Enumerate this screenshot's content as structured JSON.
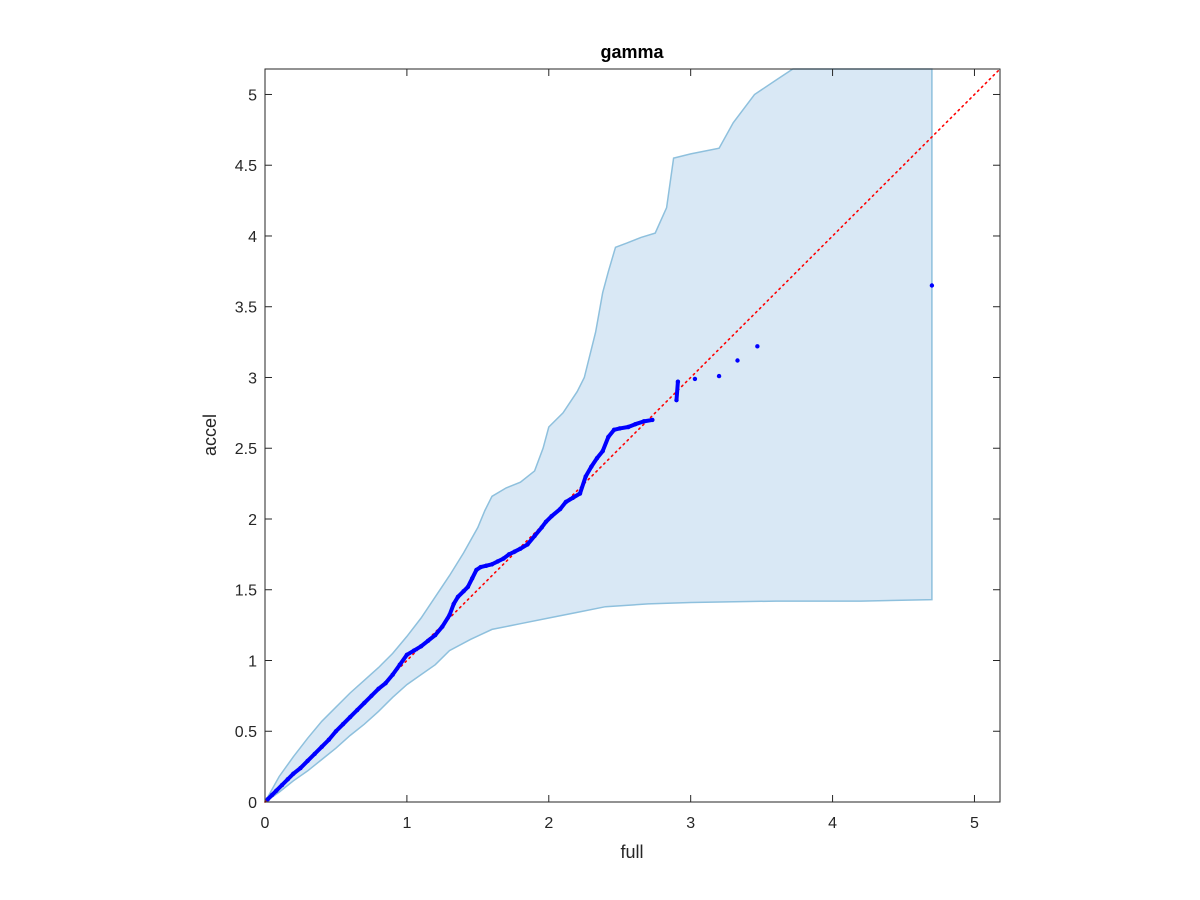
{
  "chart_data": {
    "type": "scatter",
    "title": "gamma",
    "xlabel": "full",
    "ylabel": "accel",
    "xlim": [
      0,
      5.18
    ],
    "ylim": [
      0,
      5.18
    ],
    "xticks": [
      "0",
      "1",
      "2",
      "3",
      "4",
      "5"
    ],
    "yticks": [
      "0",
      "0.5",
      "1",
      "1.5",
      "2",
      "2.5",
      "3",
      "3.5",
      "4",
      "4.5",
      "5"
    ],
    "xtick_values": [
      0,
      1,
      2,
      3,
      4,
      5
    ],
    "ytick_values": [
      0,
      0.5,
      1,
      1.5,
      2,
      2.5,
      3,
      3.5,
      4,
      4.5,
      5
    ],
    "grid": false,
    "reference_line": {
      "x": [
        0,
        5.18
      ],
      "y": [
        0,
        5.18
      ],
      "style": "dotted",
      "color": "#ff0000"
    },
    "band": {
      "color": "#d9e8f5",
      "edge_color": "#8ec0dd",
      "upper": [
        [
          0,
          0
        ],
        [
          0.1,
          0.18
        ],
        [
          0.2,
          0.32
        ],
        [
          0.3,
          0.45
        ],
        [
          0.4,
          0.57
        ],
        [
          0.5,
          0.67
        ],
        [
          0.6,
          0.77
        ],
        [
          0.7,
          0.86
        ],
        [
          0.8,
          0.95
        ],
        [
          0.9,
          1.05
        ],
        [
          1.0,
          1.17
        ],
        [
          1.1,
          1.3
        ],
        [
          1.2,
          1.45
        ],
        [
          1.3,
          1.6
        ],
        [
          1.4,
          1.76
        ],
        [
          1.5,
          1.94
        ],
        [
          1.55,
          2.06
        ],
        [
          1.6,
          2.16
        ],
        [
          1.7,
          2.22
        ],
        [
          1.8,
          2.26
        ],
        [
          1.9,
          2.34
        ],
        [
          1.96,
          2.5
        ],
        [
          2.0,
          2.65
        ],
        [
          2.1,
          2.75
        ],
        [
          2.2,
          2.9
        ],
        [
          2.25,
          3.0
        ],
        [
          2.33,
          3.32
        ],
        [
          2.38,
          3.6
        ],
        [
          2.42,
          3.75
        ],
        [
          2.47,
          3.92
        ],
        [
          2.55,
          3.95
        ],
        [
          2.65,
          3.99
        ],
        [
          2.75,
          4.02
        ],
        [
          2.83,
          4.2
        ],
        [
          2.88,
          4.55
        ],
        [
          3.0,
          4.58
        ],
        [
          3.2,
          4.62
        ],
        [
          3.3,
          4.8
        ],
        [
          3.45,
          5.0
        ],
        [
          3.6,
          5.1
        ],
        [
          3.72,
          5.18
        ],
        [
          4.7,
          5.18
        ]
      ],
      "lower": [
        [
          4.7,
          1.43
        ],
        [
          4.2,
          1.42
        ],
        [
          3.6,
          1.42
        ],
        [
          3.0,
          1.41
        ],
        [
          2.7,
          1.4
        ],
        [
          2.4,
          1.38
        ],
        [
          2.2,
          1.34
        ],
        [
          2.0,
          1.3
        ],
        [
          1.8,
          1.26
        ],
        [
          1.6,
          1.22
        ],
        [
          1.45,
          1.15
        ],
        [
          1.3,
          1.07
        ],
        [
          1.2,
          0.97
        ],
        [
          1.1,
          0.9
        ],
        [
          1.0,
          0.83
        ],
        [
          0.9,
          0.74
        ],
        [
          0.8,
          0.64
        ],
        [
          0.7,
          0.55
        ],
        [
          0.6,
          0.47
        ],
        [
          0.5,
          0.38
        ],
        [
          0.4,
          0.3
        ],
        [
          0.3,
          0.22
        ],
        [
          0.2,
          0.15
        ],
        [
          0.1,
          0.07
        ],
        [
          0,
          0
        ]
      ]
    },
    "series": [
      {
        "color": "#0000ff",
        "x": [
          0.02,
          0.05,
          0.08,
          0.12,
          0.16,
          0.2,
          0.25,
          0.3,
          0.35,
          0.4,
          0.45,
          0.5,
          0.55,
          0.6,
          0.65,
          0.7,
          0.75,
          0.8,
          0.85,
          0.9,
          0.95,
          1.0,
          1.05,
          1.1,
          1.15,
          1.2,
          1.25,
          1.3,
          1.33,
          1.36,
          1.4,
          1.43,
          1.46,
          1.49,
          1.52,
          1.56,
          1.6,
          1.64,
          1.68,
          1.72,
          1.76,
          1.8,
          1.85,
          1.9,
          1.95,
          1.98,
          2.02,
          2.08,
          2.12,
          2.17,
          2.22,
          2.26,
          2.3,
          2.34,
          2.38,
          2.42,
          2.46,
          2.5,
          2.56,
          2.61,
          2.67,
          2.73,
          2.9,
          2.91,
          3.03,
          3.2,
          3.33,
          3.47,
          4.7
        ],
        "y": [
          0.02,
          0.05,
          0.08,
          0.12,
          0.16,
          0.2,
          0.24,
          0.29,
          0.34,
          0.39,
          0.44,
          0.5,
          0.55,
          0.6,
          0.65,
          0.7,
          0.75,
          0.8,
          0.84,
          0.9,
          0.97,
          1.04,
          1.07,
          1.1,
          1.14,
          1.18,
          1.24,
          1.32,
          1.4,
          1.45,
          1.49,
          1.52,
          1.58,
          1.64,
          1.66,
          1.67,
          1.68,
          1.7,
          1.72,
          1.75,
          1.77,
          1.79,
          1.82,
          1.88,
          1.94,
          1.98,
          2.02,
          2.07,
          2.12,
          2.15,
          2.18,
          2.3,
          2.37,
          2.43,
          2.48,
          2.58,
          2.63,
          2.64,
          2.65,
          2.67,
          2.69,
          2.7,
          2.84,
          2.97,
          2.99,
          3.01,
          3.12,
          3.22,
          3.65
        ]
      }
    ]
  }
}
